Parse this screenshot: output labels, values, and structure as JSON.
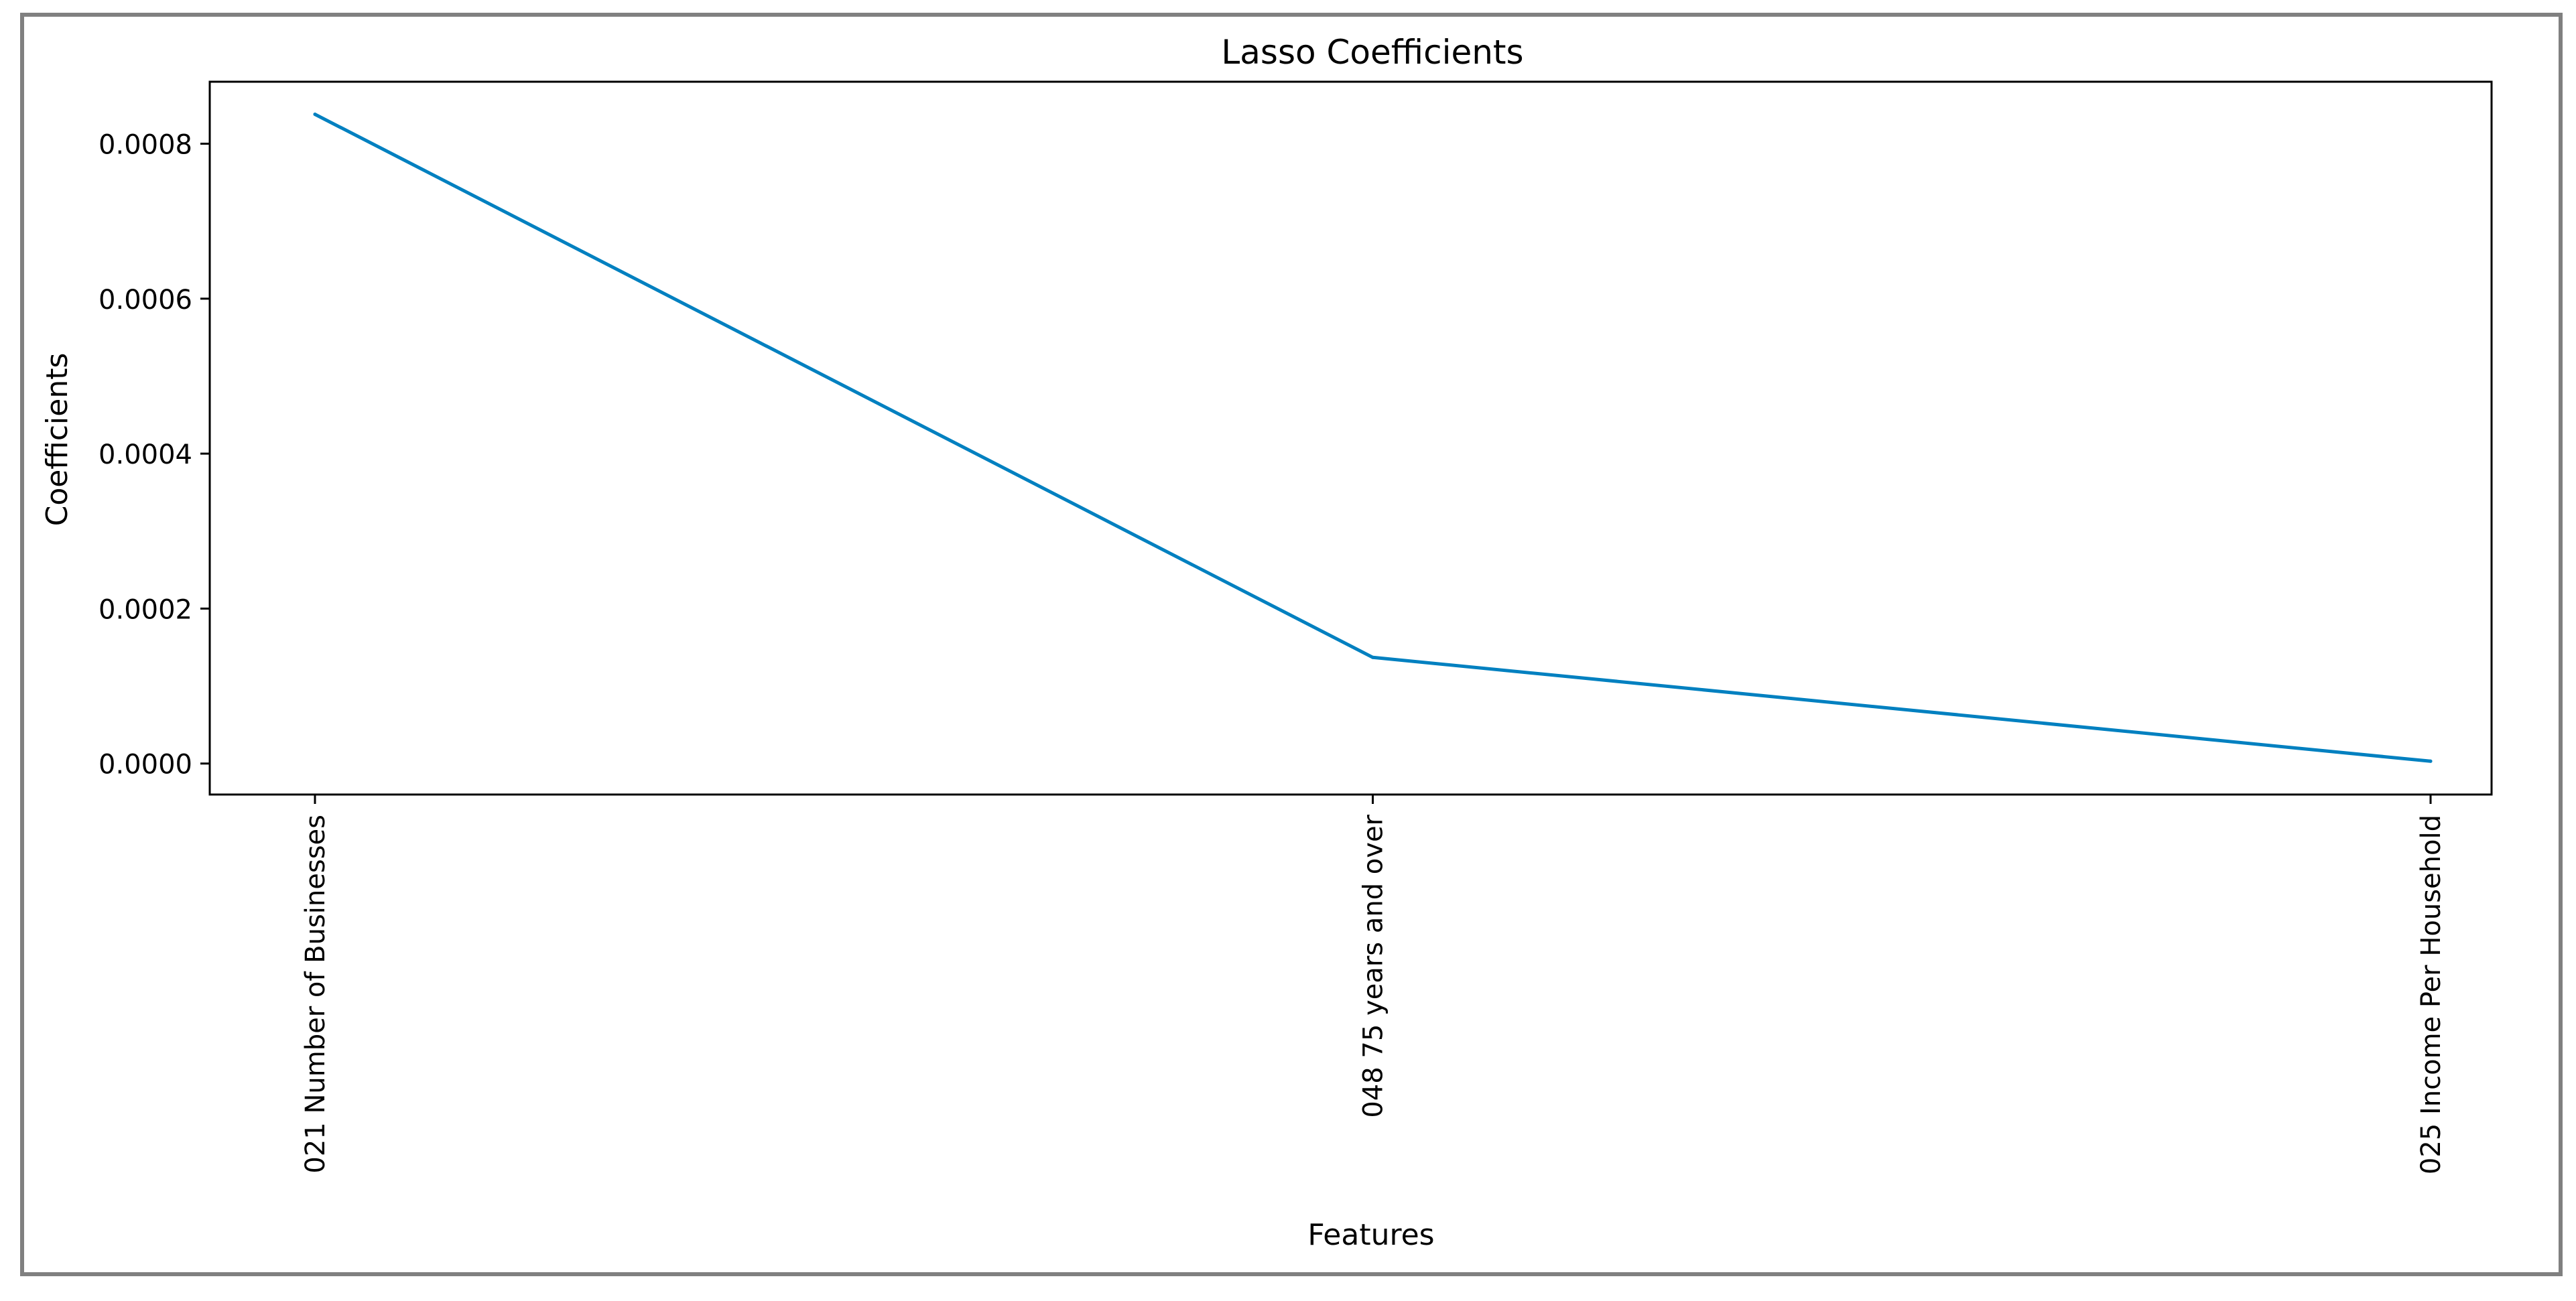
{
  "chart_data": {
    "type": "line",
    "title": "Lasso Coefficients",
    "xlabel": "Features",
    "ylabel": "Coefficients",
    "categories": [
      "021 Number of Businesses",
      "048 75 years and over",
      "025 Income Per Household"
    ],
    "series": [
      {
        "values": [
          0.000838,
          0.000137,
          3e-06
        ]
      }
    ],
    "ylim": [
      -4e-05,
      0.00088
    ],
    "yticks": [
      0.0,
      0.0002,
      0.0004,
      0.0006,
      0.0008
    ],
    "ytick_labels": [
      "0.0000",
      "0.0002",
      "0.0004",
      "0.0006",
      "0.0008"
    ],
    "grid": false,
    "line_color": "#0080c0",
    "frame_color": "#808080"
  }
}
